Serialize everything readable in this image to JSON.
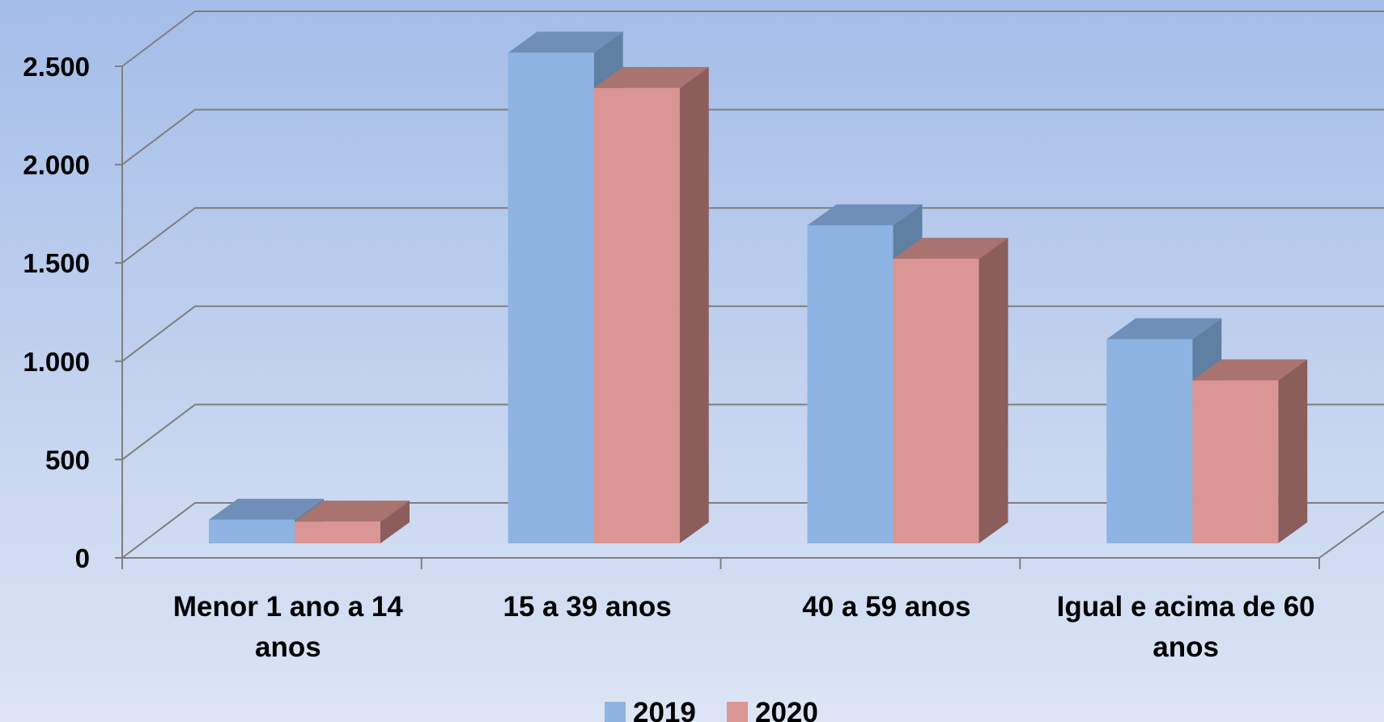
{
  "chart_data": {
    "type": "bar",
    "title": "",
    "xlabel": "",
    "ylabel": "",
    "ylim": [
      0,
      2500
    ],
    "yticks": [
      0,
      500,
      1000,
      1500,
      2000,
      2500
    ],
    "ytick_labels": [
      "0",
      "500",
      "1.000",
      "1.500",
      "2.000",
      "2.500"
    ],
    "categories": [
      [
        "Menor 1 ano a 14",
        "anos"
      ],
      [
        "15 a 39 anos"
      ],
      [
        "40 a 59 anos"
      ],
      [
        "Igual e acima de 60",
        "anos"
      ]
    ],
    "series": [
      {
        "name": "2019",
        "values": [
          120,
          2500,
          1620,
          1040
        ]
      },
      {
        "name": "2020",
        "values": [
          110,
          2320,
          1450,
          830
        ]
      }
    ],
    "grid": true,
    "legend_position": "bottom",
    "style_3d": true,
    "colors": {
      "2019": {
        "front": "#8db4e2",
        "side": "#5f7fa3",
        "top": "#6f8fb8"
      },
      "2020": {
        "front": "#d99694",
        "side": "#8b5e5c",
        "top": "#a97370"
      },
      "background_top": "#a4bde8",
      "background_bottom": "#dde5f5",
      "grid": "#7f7f7f"
    }
  }
}
